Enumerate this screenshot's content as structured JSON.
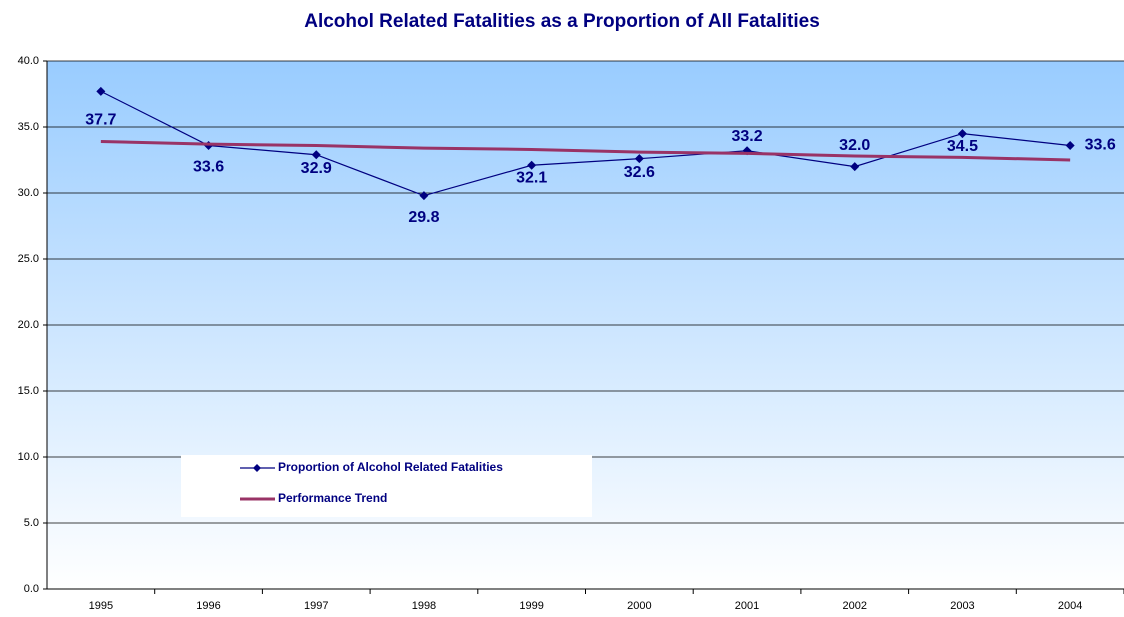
{
  "chart_data": {
    "type": "line",
    "title": "Alcohol Related Fatalities as a Proportion of All Fatalities",
    "categories": [
      "1995",
      "1996",
      "1997",
      "1998",
      "1999",
      "2000",
      "2001",
      "2002",
      "2003",
      "2004"
    ],
    "series": [
      {
        "name": "Proportion of Alcohol Related Fatalities",
        "color": "#000080",
        "marker": "diamond",
        "values": [
          37.7,
          33.6,
          32.9,
          29.8,
          32.1,
          32.6,
          33.2,
          32.0,
          34.5,
          33.6
        ],
        "value_labels": [
          "37.7",
          "33.6",
          "32.9",
          "29.8",
          "32.1",
          "32.6",
          "33.2",
          "32.0",
          "34.5",
          "33.6"
        ]
      },
      {
        "name": "Performance Trend",
        "color": "#993366",
        "values": [
          33.9,
          33.7,
          33.6,
          33.4,
          33.3,
          33.1,
          33.0,
          32.8,
          32.7,
          32.5
        ]
      }
    ],
    "ylim": [
      0,
      40
    ],
    "yticks": [
      {
        "value": 0,
        "label": "0.0"
      },
      {
        "value": 5,
        "label": "5.0"
      },
      {
        "value": 10,
        "label": "10.0"
      },
      {
        "value": 15,
        "label": "15.0"
      },
      {
        "value": 20,
        "label": "20.0"
      },
      {
        "value": 25,
        "label": "25.0"
      },
      {
        "value": 30,
        "label": "30.0"
      },
      {
        "value": 35,
        "label": "35.0"
      },
      {
        "value": 40,
        "label": "40.0"
      }
    ],
    "grid": true
  }
}
